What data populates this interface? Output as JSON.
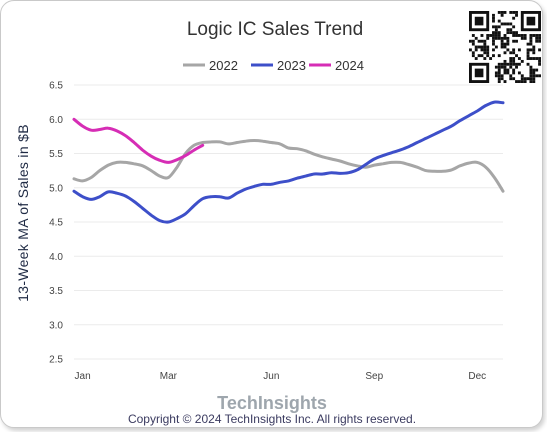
{
  "chart_data": {
    "type": "line",
    "title": "Logic IC Sales Trend",
    "xlabel": "",
    "ylabel": "13-Week MA of Sales in $B",
    "ylim": [
      2.5,
      6.5
    ],
    "yticks": [
      "6.5",
      "6.0",
      "5.5",
      "5.0",
      "4.5",
      "4.0",
      "3.5",
      "3.0",
      "2.5"
    ],
    "ytick_values": [
      6.5,
      6.0,
      5.5,
      5.0,
      4.5,
      4.0,
      3.5,
      3.0,
      2.5
    ],
    "xlim": [
      1,
      51
    ],
    "xticks": [
      "Jan",
      "Mar",
      "Jun",
      "Sep",
      "Dec"
    ],
    "xtick_weeks": [
      2,
      12,
      24,
      36,
      48
    ],
    "grid": true,
    "legend_position": "top-center",
    "series": [
      {
        "name": "2022",
        "color": "#a6a6a6",
        "x": [
          1,
          2,
          3,
          4,
          5,
          6,
          7,
          8,
          9,
          10,
          11,
          12,
          13,
          14,
          15,
          16,
          17,
          18,
          19,
          20,
          21,
          22,
          23,
          24,
          25,
          26,
          27,
          28,
          29,
          30,
          31,
          32,
          33,
          34,
          35,
          36,
          37,
          38,
          39,
          40,
          41,
          42,
          43,
          44,
          45,
          46,
          47,
          48,
          49,
          50,
          51
        ],
        "y": [
          5.13,
          5.1,
          5.15,
          5.25,
          5.33,
          5.37,
          5.37,
          5.35,
          5.32,
          5.25,
          5.17,
          5.15,
          5.3,
          5.5,
          5.62,
          5.66,
          5.67,
          5.67,
          5.64,
          5.66,
          5.68,
          5.69,
          5.68,
          5.66,
          5.64,
          5.58,
          5.57,
          5.54,
          5.49,
          5.45,
          5.42,
          5.39,
          5.35,
          5.32,
          5.3,
          5.33,
          5.35,
          5.37,
          5.37,
          5.34,
          5.3,
          5.25,
          5.24,
          5.24,
          5.26,
          5.32,
          5.36,
          5.37,
          5.3,
          5.15,
          4.95
        ]
      },
      {
        "name": "2023",
        "color": "#3d4fc9",
        "x": [
          1,
          2,
          3,
          4,
          5,
          6,
          7,
          8,
          9,
          10,
          11,
          12,
          13,
          14,
          15,
          16,
          17,
          18,
          19,
          20,
          21,
          22,
          23,
          24,
          25,
          26,
          27,
          28,
          29,
          30,
          31,
          32,
          33,
          34,
          35,
          36,
          37,
          38,
          39,
          40,
          41,
          42,
          43,
          44,
          45,
          46,
          47,
          48,
          49,
          50,
          51
        ],
        "y": [
          4.95,
          4.87,
          4.83,
          4.87,
          4.94,
          4.92,
          4.88,
          4.8,
          4.7,
          4.6,
          4.52,
          4.5,
          4.55,
          4.62,
          4.74,
          4.84,
          4.87,
          4.87,
          4.85,
          4.92,
          4.98,
          5.02,
          5.05,
          5.05,
          5.08,
          5.1,
          5.14,
          5.17,
          5.2,
          5.2,
          5.22,
          5.21,
          5.22,
          5.26,
          5.34,
          5.42,
          5.47,
          5.51,
          5.55,
          5.6,
          5.66,
          5.72,
          5.78,
          5.84,
          5.9,
          5.98,
          6.05,
          6.12,
          6.2,
          6.25,
          6.24
        ]
      },
      {
        "name": "2024",
        "color": "#d62db5",
        "x": [
          1,
          2,
          3,
          4,
          5,
          6,
          7,
          8,
          9,
          10,
          11,
          12,
          13,
          14,
          15,
          16
        ],
        "y": [
          6.0,
          5.9,
          5.84,
          5.85,
          5.87,
          5.83,
          5.76,
          5.66,
          5.55,
          5.46,
          5.4,
          5.37,
          5.41,
          5.47,
          5.55,
          5.62
        ]
      }
    ]
  },
  "branding": {
    "logo": "TechInsights",
    "copyright": "Copyright © 2024 TechInsights Inc.  All rights reserved."
  },
  "icons": {
    "qr": "qr-code-icon"
  }
}
